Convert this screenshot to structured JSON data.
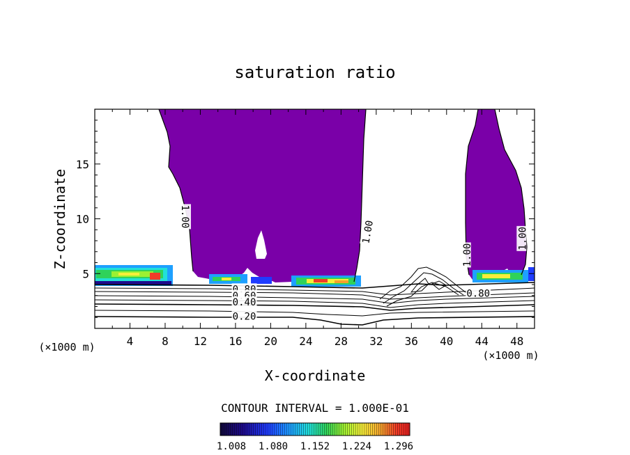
{
  "chart_data": {
    "type": "contour",
    "title": "saturation ratio",
    "xlabel": "X-coordinate",
    "ylabel": "Z-coordinate",
    "x_unit": "(×1000 m)",
    "x_unit_right": "(×1000 m)",
    "xlim": [
      0,
      50
    ],
    "ylim": [
      0,
      20
    ],
    "x_ticks": [
      "4",
      "8",
      "12",
      "16",
      "20",
      "24",
      "28",
      "32",
      "36",
      "40",
      "44",
      "48"
    ],
    "y_ticks": [
      "5",
      "10",
      "15"
    ],
    "contour_interval_text": "CONTOUR INTERVAL = 1.000E-01",
    "contour_labels": [
      {
        "text": "1.00",
        "x": 10.3,
        "z": 10.2,
        "rot": 90
      },
      {
        "text": "1.00",
        "x": 31.0,
        "z": 8.8,
        "rot": -80
      },
      {
        "text": "1.00",
        "x": 42.3,
        "z": 6.7,
        "rot": -90
      },
      {
        "text": "1.00",
        "x": 48.6,
        "z": 8.2,
        "rot": -90
      },
      {
        "text": "0.80",
        "x": 17.0,
        "z": 3.6,
        "rot": 0
      },
      {
        "text": "0.60",
        "x": 17.0,
        "z": 3.0,
        "rot": 0
      },
      {
        "text": "0.40",
        "x": 17.0,
        "z": 2.4,
        "rot": 0
      },
      {
        "text": "0.20",
        "x": 17.0,
        "z": 1.1,
        "rot": 0
      },
      {
        "text": "0.80",
        "x": 43.6,
        "z": 3.2,
        "rot": 0
      }
    ],
    "colorbar": {
      "ticks": [
        "1.008",
        "1.080",
        "1.152",
        "1.224",
        "1.296"
      ],
      "colors": [
        "#120a3c",
        "#1e0a8c",
        "#1f3cff",
        "#1ea0ff",
        "#22e0d8",
        "#2fd25a",
        "#9cf032",
        "#f7ee3a",
        "#f5a02d",
        "#f03c28",
        "#e61e1e"
      ]
    },
    "fill_color": "#7a00a8"
  }
}
